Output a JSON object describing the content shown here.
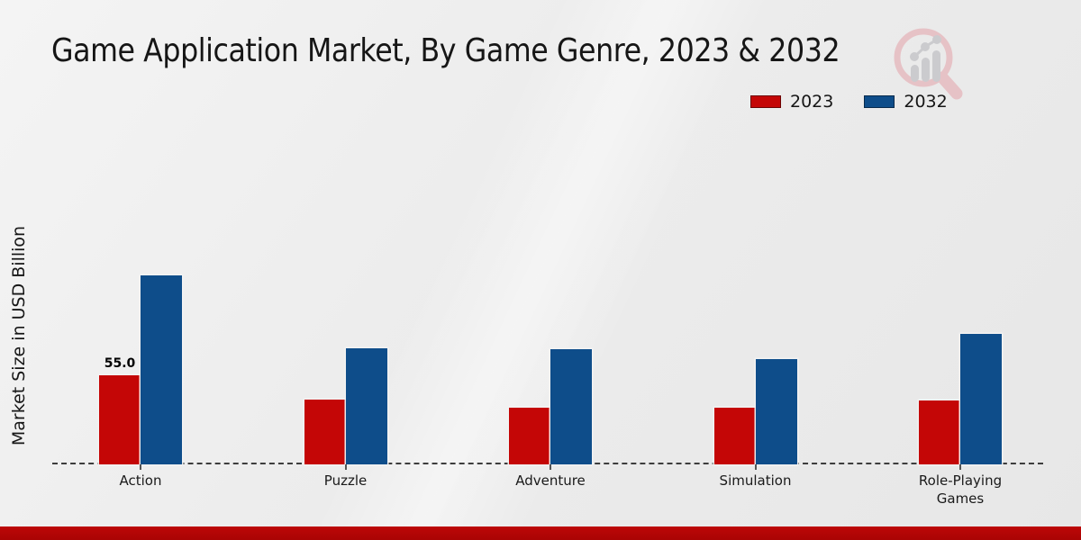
{
  "title": "Game Application Market, By Game Genre, 2023 & 2032",
  "legend": {
    "items": [
      {
        "label": "2023",
        "color": "#c40606"
      },
      {
        "label": "2032",
        "color": "#0e4d8a"
      }
    ]
  },
  "chart_data": {
    "type": "bar",
    "title": "Game Application Market, By Game Genre, 2023 & 2032",
    "xlabel": "",
    "ylabel": "Market Size in USD Billion",
    "categories": [
      "Action",
      "Puzzle",
      "Adventure",
      "Simulation",
      "Role-Playing Games"
    ],
    "series": [
      {
        "name": "2023",
        "color": "#c40606",
        "values": [
          55.0,
          40.0,
          35.0,
          35.0,
          39.5
        ],
        "data_labels": [
          "55.0",
          "",
          "",
          "",
          ""
        ]
      },
      {
        "name": "2032",
        "color": "#0e4d8a",
        "values": [
          116.7,
          71.5,
          71.0,
          65.0,
          80.5
        ],
        "data_labels": [
          "",
          "",
          "",
          "",
          ""
        ]
      }
    ],
    "ylim": [
      0,
      130
    ],
    "grid": false,
    "baseline_style": "dashed",
    "legend_position": "top-right"
  },
  "watermark_icon": "magnifier-growth-chart-logo",
  "accent_colors": {
    "footer_bar": "#b00505",
    "background": "#ececec"
  }
}
